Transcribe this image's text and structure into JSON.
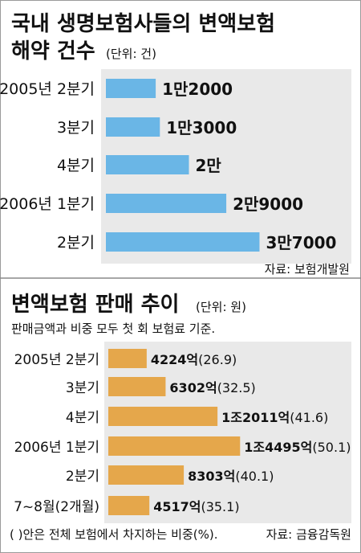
{
  "chart_data": [
    {
      "type": "bar",
      "title": "국내 생명보험사들의 변액보험",
      "title_line2": "해약 건수",
      "unit": "(단위: 건)",
      "categories": [
        "2005년 2분기",
        "3분기",
        "4분기",
        "2006년 1분기",
        "2분기"
      ],
      "values": [
        12000,
        13000,
        20000,
        29000,
        37000
      ],
      "value_labels": [
        "1만2000",
        "1만3000",
        "2만",
        "2만9000",
        "3만7000"
      ],
      "xlim": [
        0,
        40000
      ],
      "orientation": "horizontal",
      "grid": false,
      "source": "자료: 보험개발원",
      "colors": {
        "bar": "#6ab6e6",
        "panel": "#e9e9e9"
      }
    },
    {
      "type": "bar",
      "title": "변액보험 판매 추이",
      "unit": "(단위: 원)",
      "subtitle": "판매금액과 비중 모두 첫 회 보험료 기준.",
      "categories": [
        "2005년 2분기",
        "3분기",
        "4분기",
        "2006년 1분기",
        "2분기",
        "7~8월(2개월)"
      ],
      "values": [
        4224,
        6302,
        12011,
        14495,
        8303,
        4517
      ],
      "value_labels": [
        "4224억",
        "6302억",
        "1조2011억",
        "1조4495억",
        "8303억",
        "4517억"
      ],
      "shares": [
        "(26.9)",
        "(32.5)",
        "(41.6)",
        "(50.1)",
        "(40.1)",
        "(35.1)"
      ],
      "xlim": [
        0,
        15000
      ],
      "orientation": "horizontal",
      "grid": false,
      "note": "(  )안은 전체 보험에서 차지하는 비중(%).",
      "source": "자료: 금융감독원",
      "colors": {
        "bar": "#e5a74b",
        "panel": "#e9e9e9"
      }
    }
  ]
}
